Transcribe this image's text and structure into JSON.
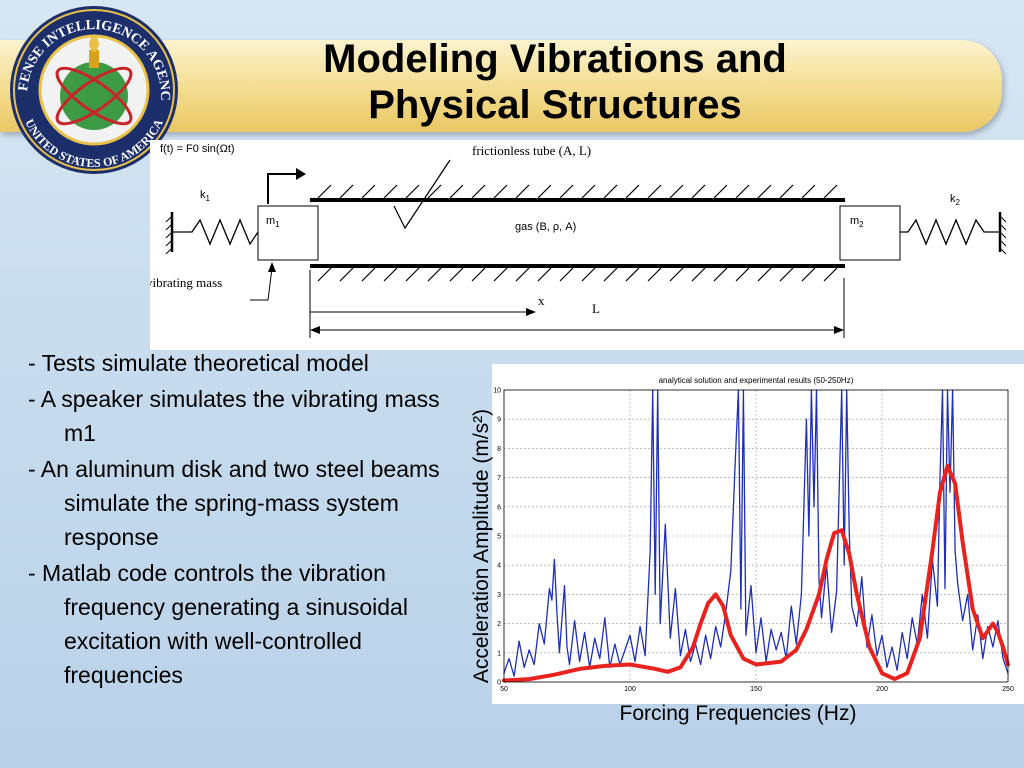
{
  "slide": {
    "title_line1": "Modeling Vibrations and",
    "title_line2": "Physical Structures",
    "seal_text_top": "DEFENSE INTELLIGENCE AGENCY",
    "seal_text_bottom": "UNITED STATES OF AMERICA"
  },
  "diagram": {
    "force_label": "f(t) = F0 sin(Ωt)",
    "tube_label": "frictionless tube (A, L)",
    "k1": "k1",
    "k2": "k2",
    "m1": "m1",
    "m2": "m2",
    "gas_label": "gas (B, ρ, A)",
    "vibrating_mass_label": "vibrating mass",
    "x_label": "x",
    "L_label": "L"
  },
  "bullets": [
    "- Tests simulate theoretical model",
    "- A speaker simulates the vibrating mass m1",
    "- An aluminum disk and two steel beams simulate the spring-mass system response",
    "- Matlab code controls the vibration frequency generating a sinusoidal excitation with well-controlled frequencies"
  ],
  "chart_caption_x": "Forcing Frequencies (Hz)",
  "chart_data": {
    "type": "line",
    "title": "analytical solution and experimental results (50-250Hz)",
    "xlabel": "Forcing Frequencies (Hz)",
    "ylabel": "Acceleration Amplitude (m/s²)",
    "xlim": [
      50,
      250
    ],
    "ylim": [
      0,
      10
    ],
    "xticks": [
      50,
      100,
      150,
      200,
      250
    ],
    "yticks": [
      0,
      1,
      2,
      3,
      4,
      5,
      6,
      7,
      8,
      9,
      10
    ],
    "grid": true,
    "series": [
      {
        "color": "#e8231e",
        "x": [
          50,
          60,
          70,
          80,
          90,
          100,
          110,
          115,
          120,
          125,
          128,
          131,
          134,
          137,
          140,
          145,
          150,
          160,
          166,
          170,
          175,
          178,
          181,
          184,
          187,
          190,
          195,
          200,
          205,
          210,
          215,
          220,
          223,
          226,
          229,
          232,
          236,
          240,
          244,
          246,
          248,
          250
        ],
        "values": [
          0.05,
          0.1,
          0.25,
          0.45,
          0.55,
          0.6,
          0.45,
          0.35,
          0.5,
          1.2,
          2.0,
          2.7,
          3.0,
          2.6,
          1.6,
          0.8,
          0.6,
          0.7,
          1.1,
          1.8,
          3.0,
          4.2,
          5.1,
          5.2,
          4.4,
          3.0,
          1.2,
          0.3,
          0.1,
          0.3,
          1.5,
          4.5,
          6.5,
          7.4,
          6.8,
          4.8,
          2.5,
          1.5,
          2.0,
          1.7,
          1.2,
          0.6
        ]
      },
      {
        "color": "#1f2fb8",
        "x": [
          50,
          52,
          54,
          56,
          58,
          60,
          62,
          64,
          66,
          68,
          69,
          70,
          71,
          72,
          74,
          75,
          76,
          78,
          80,
          82,
          84,
          86,
          88,
          90,
          92,
          94,
          96,
          98,
          100,
          102,
          104,
          106,
          108,
          109,
          110,
          111,
          112,
          114,
          116,
          118,
          120,
          122,
          124,
          126,
          128,
          130,
          132,
          134,
          136,
          138,
          140,
          142,
          143,
          144,
          145,
          146,
          148,
          150,
          152,
          154,
          156,
          158,
          160,
          162,
          164,
          166,
          168,
          170,
          171,
          172,
          173,
          174,
          175,
          176,
          178,
          180,
          182,
          184,
          185,
          186,
          187,
          188,
          190,
          192,
          194,
          196,
          198,
          200,
          202,
          204,
          206,
          208,
          210,
          212,
          214,
          216,
          218,
          220,
          222,
          223,
          224,
          225,
          226,
          227,
          228,
          229,
          230,
          232,
          234,
          236,
          238,
          240,
          242,
          244,
          246,
          248,
          250
        ],
        "values": [
          0.3,
          0.8,
          0.2,
          1.4,
          0.5,
          1.1,
          0.6,
          2.0,
          1.3,
          3.2,
          2.8,
          4.2,
          2.4,
          1.0,
          3.3,
          1.2,
          0.6,
          2.1,
          0.7,
          1.7,
          0.5,
          1.5,
          0.8,
          2.2,
          0.5,
          1.3,
          0.6,
          1.1,
          1.6,
          0.7,
          1.9,
          0.9,
          4.5,
          10.0,
          3.0,
          10.0,
          2.0,
          5.4,
          1.5,
          3.2,
          0.9,
          1.8,
          0.7,
          1.3,
          0.6,
          1.6,
          0.8,
          1.9,
          1.2,
          2.4,
          3.8,
          8.0,
          10.0,
          2.5,
          10.0,
          1.6,
          3.3,
          1.0,
          2.2,
          0.7,
          1.8,
          1.1,
          1.7,
          0.8,
          2.6,
          1.3,
          3.0,
          9.0,
          5.0,
          10.0,
          6.0,
          10.0,
          3.5,
          2.2,
          4.0,
          1.7,
          3.1,
          10.0,
          4.0,
          10.0,
          5.2,
          2.6,
          1.9,
          3.6,
          1.2,
          2.3,
          0.9,
          1.6,
          0.5,
          1.2,
          0.4,
          1.7,
          0.8,
          2.2,
          1.3,
          3.0,
          1.5,
          4.2,
          2.6,
          7.0,
          10.0,
          3.2,
          10.0,
          6.5,
          10.0,
          4.5,
          3.4,
          2.1,
          3.0,
          1.1,
          2.3,
          0.8,
          1.9,
          1.2,
          2.1,
          0.8,
          0.3
        ]
      }
    ]
  }
}
